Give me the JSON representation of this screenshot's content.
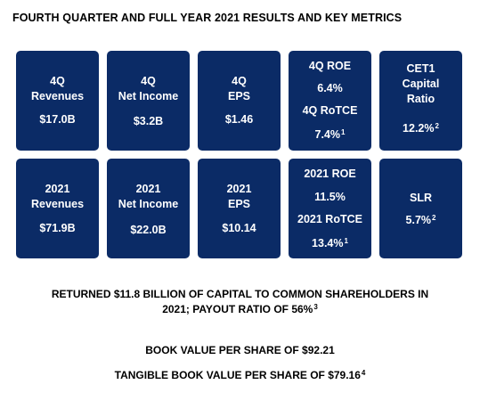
{
  "title": "FOURTH QUARTER AND FULL YEAR 2021 RESULTS AND KEY METRICS",
  "tiles_row1": [
    {
      "label1": "4Q",
      "label2": "Revenues",
      "value": "$17.0B"
    },
    {
      "label1": "4Q",
      "label2": "Net Income",
      "value": "$3.2B"
    },
    {
      "label1": "4Q",
      "label2": "EPS",
      "value": "$1.46"
    },
    {
      "label1": "4Q ROE",
      "value1": "6.4%",
      "label2": "4Q RoTCE",
      "value2": "7.4%",
      "value2_note": "1"
    },
    {
      "label1": "CET1",
      "label2": "Capital",
      "label3": "Ratio",
      "value": "12.2%",
      "value_note": "2"
    }
  ],
  "tiles_row2": [
    {
      "label1": "2021",
      "label2": "Revenues",
      "value": "$71.9B"
    },
    {
      "label1": "2021",
      "label2": "Net Income",
      "value": "$22.0B"
    },
    {
      "label1": "2021",
      "label2": "EPS",
      "value": "$10.14"
    },
    {
      "label1": "2021 ROE",
      "value1": "11.5%",
      "label2": "2021 RoTCE",
      "value2": "13.4%",
      "value2_note": "1"
    },
    {
      "label1": "SLR",
      "value": "5.7%",
      "value_note": "2"
    }
  ],
  "capital_return": {
    "line1": "RETURNED $11.8 BILLION OF CAPITAL TO COMMON SHAREHOLDERS IN",
    "line2": "2021; PAYOUT RATIO OF 56%",
    "note": "3"
  },
  "book_value": "BOOK VALUE PER SHARE OF $92.21",
  "tangible_book_value": {
    "text": "TANGIBLE BOOK VALUE PER SHARE OF $79.16",
    "note": "4"
  },
  "colors": {
    "tile_background": "#0b2b66",
    "tile_text": "#ffffff",
    "text": "#000000"
  }
}
